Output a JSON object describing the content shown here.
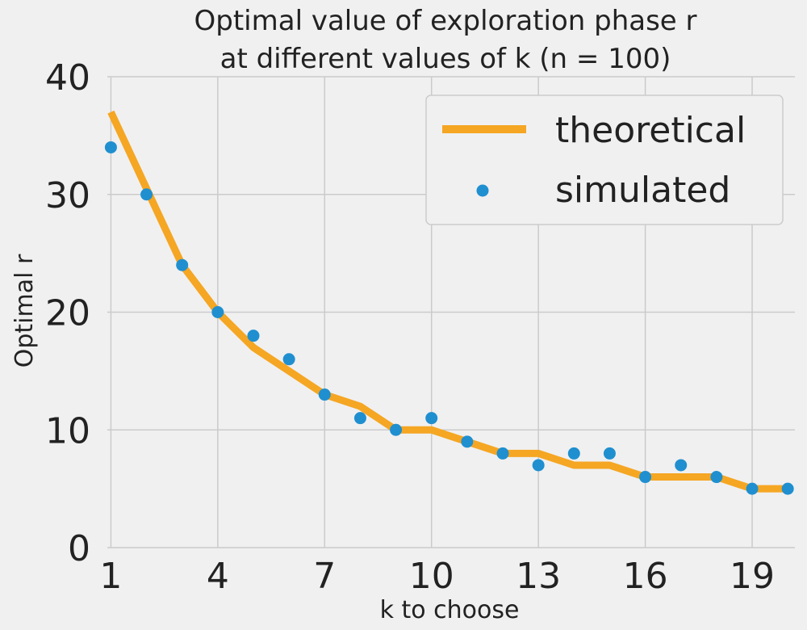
{
  "chart_data": {
    "type": "line",
    "title_line1": "Optimal value of exploration phase r",
    "title_line2": "at different values of k (n = 100)",
    "xlabel": "k to choose",
    "ylabel": "Optimal r",
    "xlim": [
      0.9,
      20.2
    ],
    "ylim": [
      0,
      40
    ],
    "xticks": [
      1,
      4,
      7,
      10,
      13,
      16,
      19
    ],
    "yticks": [
      0,
      10,
      20,
      30,
      40
    ],
    "grid": true,
    "legend_position": "top-right",
    "x": [
      1,
      2,
      3,
      4,
      5,
      6,
      7,
      8,
      9,
      10,
      11,
      12,
      13,
      14,
      15,
      16,
      17,
      18,
      19,
      20
    ],
    "series": [
      {
        "name": "theoretical",
        "kind": "line",
        "color": "#f5a623",
        "values": [
          37,
          30.5,
          24,
          20,
          17,
          15,
          13,
          12,
          10,
          10,
          9,
          8,
          8,
          7,
          7,
          6,
          6,
          6,
          5,
          5
        ]
      },
      {
        "name": "simulated",
        "kind": "scatter",
        "color": "#1f8fd0",
        "values": [
          34,
          30,
          24,
          20,
          18,
          16,
          13,
          11,
          10,
          11,
          9,
          8,
          7,
          8,
          8,
          6,
          7,
          6,
          5,
          5
        ]
      }
    ]
  }
}
